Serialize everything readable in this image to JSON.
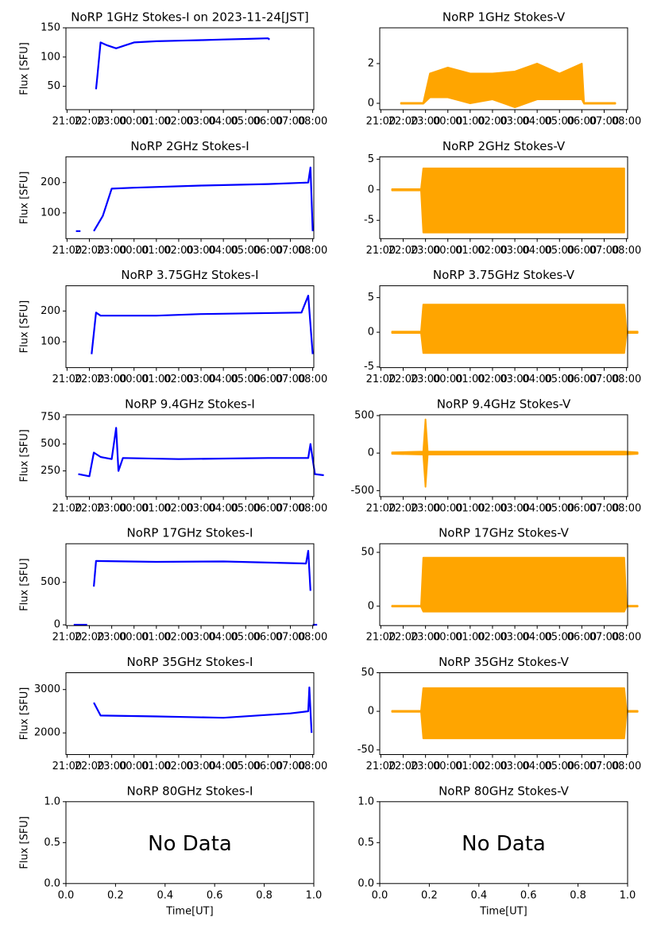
{
  "chart_data": [
    {
      "type": "line",
      "title": "NoRP 1GHz Stokes-I on 2023-11-24[JST]",
      "ylabel": "Flux [SFU]",
      "color": "#0000ff",
      "x": [
        22.3,
        22.35,
        22.5,
        22.8,
        23.2,
        23.6,
        24,
        25,
        26,
        27,
        28,
        29,
        30,
        30.07
      ],
      "values": [
        45,
        65,
        125,
        120,
        115,
        120,
        125,
        127,
        128,
        129,
        130,
        131,
        132,
        130
      ],
      "xlim": [
        20.95,
        32.05
      ],
      "ylim": [
        10,
        150
      ],
      "yticks": [
        50,
        100,
        150
      ],
      "xticks": [
        {
          "value": 21,
          "label": "21:00"
        },
        {
          "value": 22,
          "label": "22:00"
        },
        {
          "value": 23,
          "label": "23:00"
        },
        {
          "value": 24,
          "label": "00:00"
        },
        {
          "value": 25,
          "label": "01:00"
        },
        {
          "value": 26,
          "label": "02:00"
        },
        {
          "value": 27,
          "label": "03:00"
        },
        {
          "value": 28,
          "label": "04:00"
        },
        {
          "value": 29,
          "label": "05:00"
        },
        {
          "value": 30,
          "label": "06:00"
        },
        {
          "value": 31,
          "label": "07:00"
        },
        {
          "value": 32,
          "label": "08:00"
        }
      ]
    },
    {
      "type": "band",
      "title": "NoRP 1GHz Stokes-V",
      "color": "#ffa500",
      "x": [
        21.9,
        22.9,
        23.2,
        24,
        25,
        26,
        27,
        28,
        29,
        30,
        30.1,
        31.5
      ],
      "low": [
        -0.02,
        -0.02,
        0.3,
        0.3,
        0,
        0.2,
        -0.2,
        0.2,
        0.2,
        0.2,
        -0.02,
        -0.02
      ],
      "high": [
        0.02,
        0.02,
        1.5,
        1.8,
        1.5,
        1.5,
        1.6,
        2,
        1.5,
        2,
        0.02,
        0.02
      ],
      "xlim": [
        20.95,
        32.05
      ],
      "ylim": [
        -0.32,
        3.8
      ],
      "yticks": [
        0,
        2
      ],
      "xticks": [
        {
          "value": 21,
          "label": "21:00"
        },
        {
          "value": 22,
          "label": "22:00"
        },
        {
          "value": 23,
          "label": "23:00"
        },
        {
          "value": 24,
          "label": "00:00"
        },
        {
          "value": 25,
          "label": "01:00"
        },
        {
          "value": 26,
          "label": "02:00"
        },
        {
          "value": 27,
          "label": "03:00"
        },
        {
          "value": 28,
          "label": "04:00"
        },
        {
          "value": 29,
          "label": "05:00"
        },
        {
          "value": 30,
          "label": "06:00"
        },
        {
          "value": 31,
          "label": "07:00"
        },
        {
          "value": 32,
          "label": "08:00"
        }
      ]
    },
    {
      "type": "line",
      "title": "NoRP 2GHz Stokes-I",
      "ylabel": "Flux [SFU]",
      "color": "#0000ff",
      "x": [
        21.4,
        21.6,
        null,
        22.2,
        22.6,
        23.0,
        24,
        27,
        30,
        31.8,
        31.9,
        32.0
      ],
      "values": [
        40,
        40,
        null,
        40,
        90,
        180,
        183,
        190,
        195,
        200,
        250,
        40
      ],
      "xlim": [
        20.95,
        32.05
      ],
      "ylim": [
        15,
        285
      ],
      "yticks": [
        100,
        200
      ],
      "xticks": [
        {
          "value": 21,
          "label": "21:00"
        },
        {
          "value": 22,
          "label": "22:00"
        },
        {
          "value": 23,
          "label": "23:00"
        },
        {
          "value": 24,
          "label": "00:00"
        },
        {
          "value": 25,
          "label": "01:00"
        },
        {
          "value": 26,
          "label": "02:00"
        },
        {
          "value": 27,
          "label": "03:00"
        },
        {
          "value": 28,
          "label": "04:00"
        },
        {
          "value": 29,
          "label": "05:00"
        },
        {
          "value": 30,
          "label": "06:00"
        },
        {
          "value": 31,
          "label": "07:00"
        },
        {
          "value": 32,
          "label": "08:00"
        }
      ]
    },
    {
      "type": "band",
      "title": "NoRP 2GHz Stokes-V",
      "color": "#ffa500",
      "x": [
        21.5,
        22.8,
        22.9,
        31.9
      ],
      "low": [
        -0.1,
        -0.1,
        -7,
        -7
      ],
      "high": [
        0.1,
        0.1,
        3.5,
        3.5
      ],
      "xlim": [
        20.95,
        32.05
      ],
      "ylim": [
        -8,
        5.4
      ],
      "yticks": [
        -5,
        0,
        5
      ],
      "xticks": [
        {
          "value": 21,
          "label": "21:00"
        },
        {
          "value": 22,
          "label": "22:00"
        },
        {
          "value": 23,
          "label": "23:00"
        },
        {
          "value": 24,
          "label": "00:00"
        },
        {
          "value": 25,
          "label": "01:00"
        },
        {
          "value": 26,
          "label": "02:00"
        },
        {
          "value": 27,
          "label": "03:00"
        },
        {
          "value": 28,
          "label": "04:00"
        },
        {
          "value": 29,
          "label": "05:00"
        },
        {
          "value": 30,
          "label": "06:00"
        },
        {
          "value": 31,
          "label": "07:00"
        },
        {
          "value": 32,
          "label": "08:00"
        }
      ]
    },
    {
      "type": "line",
      "title": "NoRP 3.75GHz Stokes-I",
      "ylabel": "Flux [SFU]",
      "color": "#0000ff",
      "x": [
        22.1,
        22.3,
        22.5,
        25,
        27,
        31.5,
        31.8,
        32.0
      ],
      "values": [
        60,
        195,
        185,
        185,
        190,
        195,
        250,
        60
      ],
      "xlim": [
        20.95,
        32.05
      ],
      "ylim": [
        16,
        282
      ],
      "yticks": [
        100,
        200
      ],
      "xticks": [
        {
          "value": 21,
          "label": "21:00"
        },
        {
          "value": 22,
          "label": "22:00"
        },
        {
          "value": 23,
          "label": "23:00"
        },
        {
          "value": 24,
          "label": "00:00"
        },
        {
          "value": 25,
          "label": "01:00"
        },
        {
          "value": 26,
          "label": "02:00"
        },
        {
          "value": 27,
          "label": "03:00"
        },
        {
          "value": 28,
          "label": "04:00"
        },
        {
          "value": 29,
          "label": "05:00"
        },
        {
          "value": 30,
          "label": "06:00"
        },
        {
          "value": 31,
          "label": "07:00"
        },
        {
          "value": 32,
          "label": "08:00"
        }
      ]
    },
    {
      "type": "band",
      "title": "NoRP 3.75GHz Stokes-V",
      "color": "#ffa500",
      "x": [
        21.5,
        22.8,
        22.9,
        31.9,
        32.0,
        32.5
      ],
      "low": [
        -0.1,
        -0.1,
        -3,
        -3,
        -0.1,
        -0.1
      ],
      "high": [
        0.1,
        0.1,
        4,
        4,
        0.1,
        0.1
      ],
      "xlim": [
        20.95,
        32.05
      ],
      "ylim": [
        -5.1,
        6.7
      ],
      "yticks": [
        -5,
        0,
        5
      ],
      "xticks": [
        {
          "value": 21,
          "label": "21:00"
        },
        {
          "value": 22,
          "label": "22:00"
        },
        {
          "value": 23,
          "label": "23:00"
        },
        {
          "value": 24,
          "label": "00:00"
        },
        {
          "value": 25,
          "label": "01:00"
        },
        {
          "value": 26,
          "label": "02:00"
        },
        {
          "value": 27,
          "label": "03:00"
        },
        {
          "value": 28,
          "label": "04:00"
        },
        {
          "value": 29,
          "label": "05:00"
        },
        {
          "value": 30,
          "label": "06:00"
        },
        {
          "value": 31,
          "label": "07:00"
        },
        {
          "value": 32,
          "label": "08:00"
        }
      ]
    },
    {
      "type": "line",
      "title": "NoRP 9.4GHz Stokes-I",
      "ylabel": "Flux [SFU]",
      "color": "#0000ff",
      "x": [
        21.5,
        22.0,
        22.2,
        22.5,
        23.0,
        23.2,
        23.3,
        23.5,
        26,
        30,
        31.8,
        31.9,
        32.1,
        32.5
      ],
      "values": [
        220,
        200,
        420,
        380,
        360,
        650,
        250,
        370,
        360,
        370,
        370,
        500,
        220,
        210
      ],
      "xlim": [
        20.95,
        32.05
      ],
      "ylim": [
        11,
        772
      ],
      "yticks": [
        250,
        500,
        750
      ],
      "xticks": [
        {
          "value": 21,
          "label": "21:00"
        },
        {
          "value": 22,
          "label": "22:00"
        },
        {
          "value": 23,
          "label": "23:00"
        },
        {
          "value": 24,
          "label": "00:00"
        },
        {
          "value": 25,
          "label": "01:00"
        },
        {
          "value": 26,
          "label": "02:00"
        },
        {
          "value": 27,
          "label": "03:00"
        },
        {
          "value": 28,
          "label": "04:00"
        },
        {
          "value": 29,
          "label": "05:00"
        },
        {
          "value": 30,
          "label": "06:00"
        },
        {
          "value": 31,
          "label": "07:00"
        },
        {
          "value": 32,
          "label": "08:00"
        }
      ]
    },
    {
      "type": "band",
      "title": "NoRP 9.4GHz Stokes-V",
      "color": "#ffa500",
      "x": [
        21.5,
        22.9,
        23.0,
        23.1,
        31.9,
        32.5
      ],
      "low": [
        -10,
        -20,
        -450,
        -20,
        -20,
        -10
      ],
      "high": [
        10,
        20,
        450,
        20,
        20,
        10
      ],
      "xlim": [
        20.95,
        32.05
      ],
      "ylim": [
        -580,
        511
      ],
      "yticks": [
        -500,
        0,
        500
      ],
      "xticks": [
        {
          "value": 21,
          "label": "21:00"
        },
        {
          "value": 22,
          "label": "22:00"
        },
        {
          "value": 23,
          "label": "23:00"
        },
        {
          "value": 24,
          "label": "00:00"
        },
        {
          "value": 25,
          "label": "01:00"
        },
        {
          "value": 26,
          "label": "02:00"
        },
        {
          "value": 27,
          "label": "03:00"
        },
        {
          "value": 28,
          "label": "04:00"
        },
        {
          "value": 29,
          "label": "05:00"
        },
        {
          "value": 30,
          "label": "06:00"
        },
        {
          "value": 31,
          "label": "07:00"
        },
        {
          "value": 32,
          "label": "08:00"
        }
      ]
    },
    {
      "type": "line",
      "title": "NoRP 17GHz Stokes-I",
      "ylabel": "Flux [SFU]",
      "color": "#0000ff",
      "x": [
        21.3,
        21.9,
        null,
        22.2,
        22.3,
        25,
        28,
        31.7,
        31.8,
        31.9,
        null,
        32.0,
        32.2
      ],
      "values": [
        0,
        0,
        null,
        450,
        750,
        740,
        745,
        720,
        870,
        400,
        null,
        0,
        0
      ],
      "xlim": [
        20.95,
        32.05
      ],
      "ylim": [
        -9,
        953
      ],
      "yticks": [
        0,
        500
      ],
      "xticks": [
        {
          "value": 21,
          "label": "21:00"
        },
        {
          "value": 22,
          "label": "22:00"
        },
        {
          "value": 23,
          "label": "23:00"
        },
        {
          "value": 24,
          "label": "00:00"
        },
        {
          "value": 25,
          "label": "01:00"
        },
        {
          "value": 26,
          "label": "02:00"
        },
        {
          "value": 27,
          "label": "03:00"
        },
        {
          "value": 28,
          "label": "04:00"
        },
        {
          "value": 29,
          "label": "05:00"
        },
        {
          "value": 30,
          "label": "06:00"
        },
        {
          "value": 31,
          "label": "07:00"
        },
        {
          "value": 32,
          "label": "08:00"
        }
      ]
    },
    {
      "type": "band",
      "title": "NoRP 17GHz Stokes-V",
      "color": "#ffa500",
      "x": [
        21.5,
        22.8,
        22.9,
        31.9,
        32.0,
        32.5
      ],
      "low": [
        -0.4,
        -0.4,
        -5,
        -5,
        -0.4,
        -0.4
      ],
      "high": [
        0.4,
        0.4,
        45,
        45,
        0.4,
        0.4
      ],
      "xlim": [
        20.95,
        32.05
      ],
      "ylim": [
        -18,
        58
      ],
      "yticks": [
        0,
        50
      ],
      "xticks": [
        {
          "value": 21,
          "label": "21:00"
        },
        {
          "value": 22,
          "label": "22:00"
        },
        {
          "value": 23,
          "label": "23:00"
        },
        {
          "value": 24,
          "label": "00:00"
        },
        {
          "value": 25,
          "label": "01:00"
        },
        {
          "value": 26,
          "label": "02:00"
        },
        {
          "value": 27,
          "label": "03:00"
        },
        {
          "value": 28,
          "label": "04:00"
        },
        {
          "value": 29,
          "label": "05:00"
        },
        {
          "value": 30,
          "label": "06:00"
        },
        {
          "value": 31,
          "label": "07:00"
        },
        {
          "value": 32,
          "label": "08:00"
        }
      ]
    },
    {
      "type": "line",
      "title": "NoRP 35GHz Stokes-I",
      "ylabel": "Flux [SFU]",
      "color": "#0000ff",
      "x": [
        22.2,
        22.5,
        25,
        28,
        31,
        31.8,
        31.85,
        31.95
      ],
      "values": [
        2700,
        2400,
        2380,
        2350,
        2450,
        2500,
        3050,
        2000
      ],
      "xlim": [
        20.95,
        32.05
      ],
      "ylim": [
        1500,
        3389
      ],
      "yticks": [
        2000,
        3000
      ],
      "xticks": [
        {
          "value": 21,
          "label": "21:00"
        },
        {
          "value": 22,
          "label": "22:00"
        },
        {
          "value": 23,
          "label": "23:00"
        },
        {
          "value": 24,
          "label": "00:00"
        },
        {
          "value": 25,
          "label": "01:00"
        },
        {
          "value": 26,
          "label": "02:00"
        },
        {
          "value": 27,
          "label": "03:00"
        },
        {
          "value": 28,
          "label": "04:00"
        },
        {
          "value": 29,
          "label": "05:00"
        },
        {
          "value": 30,
          "label": "06:00"
        },
        {
          "value": 31,
          "label": "07:00"
        },
        {
          "value": 32,
          "label": "08:00"
        }
      ]
    },
    {
      "type": "band",
      "title": "NoRP 35GHz Stokes-V",
      "color": "#ffa500",
      "x": [
        21.5,
        22.8,
        22.9,
        31.9,
        32.0,
        32.5
      ],
      "low": [
        -0.6,
        -0.6,
        -35,
        -35,
        -0.6,
        -0.6
      ],
      "high": [
        0.6,
        0.6,
        30,
        30,
        0.6,
        0.6
      ],
      "xlim": [
        20.95,
        32.05
      ],
      "ylim": [
        -56,
        50
      ],
      "yticks": [
        -50,
        0,
        50
      ],
      "xticks": [
        {
          "value": 21,
          "label": "21:00"
        },
        {
          "value": 22,
          "label": "22:00"
        },
        {
          "value": 23,
          "label": "23:00"
        },
        {
          "value": 24,
          "label": "00:00"
        },
        {
          "value": 25,
          "label": "01:00"
        },
        {
          "value": 26,
          "label": "02:00"
        },
        {
          "value": 27,
          "label": "03:00"
        },
        {
          "value": 28,
          "label": "04:00"
        },
        {
          "value": 29,
          "label": "05:00"
        },
        {
          "value": 30,
          "label": "06:00"
        },
        {
          "value": 31,
          "label": "07:00"
        },
        {
          "value": 32,
          "label": "08:00"
        }
      ]
    },
    {
      "type": "empty",
      "title": "NoRP 80GHz Stokes-I",
      "ylabel": "Flux [SFU]",
      "xlabel": "Time[UT]",
      "annotation": "No Data",
      "xlim": [
        0,
        1
      ],
      "ylim": [
        0,
        1
      ],
      "xticks": [
        {
          "value": 0,
          "label": "0.0"
        },
        {
          "value": 0.2,
          "label": "0.2"
        },
        {
          "value": 0.4,
          "label": "0.4"
        },
        {
          "value": 0.6,
          "label": "0.6"
        },
        {
          "value": 0.8,
          "label": "0.8"
        },
        {
          "value": 1,
          "label": "1.0"
        }
      ],
      "yticks": [
        {
          "value": 0,
          "label": "0.0"
        },
        {
          "value": 0.5,
          "label": "0.5"
        },
        {
          "value": 1,
          "label": "1.0"
        }
      ]
    },
    {
      "type": "empty",
      "title": "NoRP 80GHz Stokes-V",
      "xlabel": "Time[UT]",
      "annotation": "No Data",
      "xlim": [
        0,
        1
      ],
      "ylim": [
        0,
        1
      ],
      "xticks": [
        {
          "value": 0,
          "label": "0.0"
        },
        {
          "value": 0.2,
          "label": "0.2"
        },
        {
          "value": 0.4,
          "label": "0.4"
        },
        {
          "value": 0.6,
          "label": "0.6"
        },
        {
          "value": 0.8,
          "label": "0.8"
        },
        {
          "value": 1,
          "label": "1.0"
        }
      ],
      "yticks": [
        {
          "value": 0,
          "label": "0.0"
        },
        {
          "value": 0.5,
          "label": "0.5"
        },
        {
          "value": 1,
          "label": "1.0"
        }
      ]
    }
  ]
}
